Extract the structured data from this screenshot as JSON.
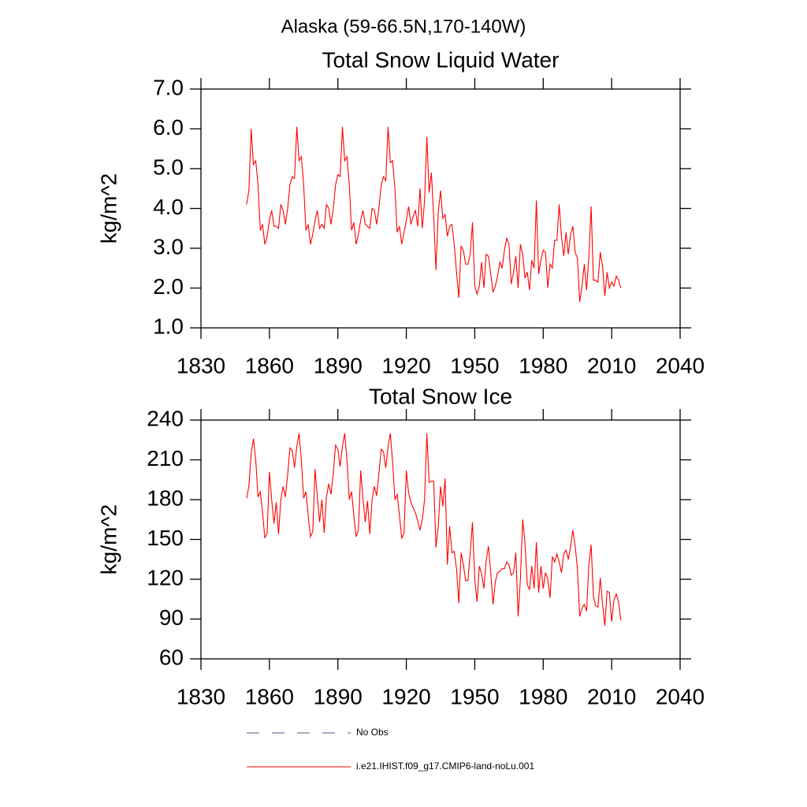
{
  "title": "Alaska (59-66.5N,170-140W)",
  "chart_data": [
    {
      "type": "line",
      "title": "Total Snow Liquid Water",
      "ylabel": "kg/m^2",
      "x": [
        1850,
        1851,
        1852,
        1853,
        1854,
        1855,
        1856,
        1857,
        1858,
        1859,
        1860,
        1861,
        1862,
        1863,
        1864,
        1865,
        1866,
        1867,
        1868,
        1869,
        1870,
        1871,
        1872,
        1873,
        1874,
        1875,
        1876,
        1877,
        1878,
        1879,
        1880,
        1881,
        1882,
        1883,
        1884,
        1885,
        1886,
        1887,
        1888,
        1889,
        1890,
        1891,
        1892,
        1893,
        1894,
        1895,
        1896,
        1897,
        1898,
        1899,
        1900,
        1901,
        1902,
        1903,
        1904,
        1905,
        1906,
        1907,
        1908,
        1909,
        1910,
        1911,
        1912,
        1913,
        1914,
        1915,
        1916,
        1917,
        1918,
        1919,
        1920,
        1921,
        1922,
        1923,
        1924,
        1925,
        1926,
        1927,
        1928,
        1929,
        1930,
        1931,
        1932,
        1933,
        1934,
        1935,
        1936,
        1937,
        1938,
        1939,
        1940,
        1941,
        1942,
        1943,
        1944,
        1945,
        1946,
        1947,
        1948,
        1949,
        1950,
        1951,
        1952,
        1953,
        1954,
        1955,
        1956,
        1957,
        1958,
        1959,
        1960,
        1961,
        1962,
        1963,
        1964,
        1965,
        1966,
        1967,
        1968,
        1969,
        1970,
        1971,
        1972,
        1973,
        1974,
        1975,
        1976,
        1977,
        1978,
        1979,
        1980,
        1981,
        1982,
        1983,
        1984,
        1985,
        1986,
        1987,
        1988,
        1989,
        1990,
        1991,
        1992,
        1993,
        1994,
        1995,
        1996,
        1997,
        1998,
        1999,
        2000,
        2001,
        2002,
        2003,
        2004,
        2005,
        2006,
        2007,
        2008,
        2009,
        2010,
        2011,
        2012,
        2013,
        2014
      ],
      "series": [
        {
          "color": "#ff0000",
          "values": [
            4.1,
            4.45,
            6.0,
            5.1,
            5.2,
            4.6,
            3.45,
            3.6,
            3.1,
            3.3,
            3.7,
            3.95,
            3.55,
            3.55,
            3.5,
            4.1,
            3.95,
            3.6,
            4.0,
            4.6,
            4.8,
            4.75,
            6.05,
            5.2,
            5.3,
            4.6,
            3.45,
            3.6,
            3.1,
            3.35,
            3.7,
            3.95,
            3.5,
            3.6,
            3.5,
            4.1,
            4.0,
            3.6,
            4.0,
            4.6,
            4.85,
            4.8,
            6.05,
            5.2,
            5.3,
            4.6,
            3.45,
            3.65,
            3.1,
            3.35,
            3.7,
            3.95,
            3.6,
            3.55,
            3.5,
            4.0,
            3.95,
            3.6,
            4.0,
            4.6,
            4.8,
            4.7,
            6.05,
            5.15,
            5.2,
            4.5,
            3.4,
            3.55,
            3.1,
            3.4,
            3.7,
            4.05,
            3.6,
            3.8,
            3.95,
            3.55,
            4.5,
            3.5,
            4.2,
            5.8,
            4.4,
            4.9,
            3.8,
            2.45,
            3.9,
            4.45,
            3.75,
            3.85,
            3.3,
            3.55,
            3.6,
            3.1,
            2.4,
            1.75,
            3.05,
            2.95,
            2.6,
            2.6,
            2.85,
            3.65,
            2.05,
            1.85,
            2.05,
            2.65,
            2.0,
            2.85,
            2.8,
            2.35,
            1.9,
            2.05,
            2.3,
            2.65,
            2.5,
            2.95,
            3.25,
            3.1,
            2.1,
            2.4,
            2.8,
            2.0,
            3.1,
            2.85,
            2.25,
            2.4,
            1.95,
            2.7,
            2.5,
            4.2,
            2.35,
            2.7,
            2.95,
            2.9,
            2.0,
            2.6,
            2.5,
            3.2,
            3.2,
            4.1,
            3.3,
            2.8,
            3.4,
            2.85,
            3.35,
            3.55,
            2.9,
            2.75,
            1.65,
            2.05,
            2.6,
            1.95,
            2.8,
            4.05,
            2.2,
            2.2,
            2.15,
            2.9,
            2.55,
            1.8,
            2.4,
            2.0,
            2.15,
            2.05,
            2.3,
            2.2,
            2.0
          ]
        }
      ],
      "xlim": [
        1830,
        2040
      ],
      "xticks": [
        1830,
        1860,
        1890,
        1920,
        1950,
        1980,
        2010,
        2040
      ],
      "ylim": [
        1,
        7
      ],
      "yticks": [
        {
          "value": 1,
          "label": "1.0"
        },
        {
          "value": 2,
          "label": "2.0"
        },
        {
          "value": 3,
          "label": "3.0"
        },
        {
          "value": 4,
          "label": "4.0"
        },
        {
          "value": 5,
          "label": "5.0"
        },
        {
          "value": 6,
          "label": "6.0"
        },
        {
          "value": 7,
          "label": "7.0"
        }
      ]
    },
    {
      "type": "line",
      "title": "Total Snow Ice",
      "ylabel": "kg/m^2",
      "x": [
        1850,
        1851,
        1852,
        1853,
        1854,
        1855,
        1856,
        1857,
        1858,
        1859,
        1860,
        1861,
        1862,
        1863,
        1864,
        1865,
        1866,
        1867,
        1868,
        1869,
        1870,
        1871,
        1872,
        1873,
        1874,
        1875,
        1876,
        1877,
        1878,
        1879,
        1880,
        1881,
        1882,
        1883,
        1884,
        1885,
        1886,
        1887,
        1888,
        1889,
        1890,
        1891,
        1892,
        1893,
        1894,
        1895,
        1896,
        1897,
        1898,
        1899,
        1900,
        1901,
        1902,
        1903,
        1904,
        1905,
        1906,
        1907,
        1908,
        1909,
        1910,
        1911,
        1912,
        1913,
        1914,
        1915,
        1916,
        1917,
        1918,
        1919,
        1920,
        1921,
        1922,
        1923,
        1924,
        1925,
        1926,
        1927,
        1928,
        1929,
        1930,
        1931,
        1932,
        1933,
        1934,
        1935,
        1936,
        1937,
        1938,
        1939,
        1940,
        1941,
        1942,
        1943,
        1944,
        1945,
        1946,
        1947,
        1948,
        1949,
        1950,
        1951,
        1952,
        1953,
        1954,
        1955,
        1956,
        1957,
        1958,
        1959,
        1960,
        1961,
        1962,
        1963,
        1964,
        1965,
        1966,
        1967,
        1968,
        1969,
        1970,
        1971,
        1972,
        1973,
        1974,
        1975,
        1976,
        1977,
        1978,
        1979,
        1980,
        1981,
        1982,
        1983,
        1984,
        1985,
        1986,
        1987,
        1988,
        1989,
        1990,
        1991,
        1992,
        1993,
        1994,
        1995,
        1996,
        1997,
        1998,
        1999,
        2000,
        2001,
        2002,
        2003,
        2004,
        2005,
        2006,
        2007,
        2008,
        2009,
        2010,
        2011,
        2012,
        2013,
        2014
      ],
      "series": [
        {
          "color": "#ff0000",
          "values": [
            181,
            190,
            215,
            226,
            210,
            182,
            186,
            170,
            151,
            155,
            201,
            180,
            162,
            178,
            154,
            180,
            190,
            182,
            199,
            219,
            217,
            204,
            220,
            230,
            210,
            181,
            186,
            168,
            152,
            156,
            203,
            182,
            163,
            180,
            155,
            182,
            192,
            184,
            200,
            221,
            218,
            205,
            220,
            230,
            210,
            180,
            186,
            168,
            152,
            157,
            202,
            181,
            163,
            179,
            154,
            180,
            190,
            183,
            200,
            218,
            216,
            204,
            220,
            230,
            208,
            180,
            184,
            168,
            151,
            155,
            202,
            185,
            178,
            174,
            170,
            164,
            157,
            165,
            180,
            230,
            193,
            194,
            194,
            144,
            160,
            190,
            175,
            196,
            131,
            160,
            140,
            141,
            128,
            102,
            140,
            131,
            119,
            119,
            140,
            163,
            120,
            103,
            130,
            124,
            113,
            134,
            145,
            125,
            101,
            118,
            125,
            126,
            128,
            128,
            133,
            131,
            123,
            125,
            140,
            92,
            120,
            165,
            148,
            116,
            112,
            130,
            113,
            148,
            110,
            130,
            113,
            125,
            120,
            106,
            137,
            133,
            139,
            133,
            125,
            139,
            142,
            135,
            145,
            157,
            145,
            128,
            92,
            98,
            101,
            96,
            131,
            146,
            107,
            100,
            99,
            121,
            101,
            85,
            111,
            110,
            88,
            104,
            109,
            103,
            89
          ]
        }
      ],
      "xlim": [
        1830,
        2040
      ],
      "xticks": [
        1830,
        1860,
        1890,
        1920,
        1950,
        1980,
        2010,
        2040
      ],
      "ylim": [
        60,
        240
      ],
      "yticks": [
        60,
        90,
        120,
        150,
        180,
        210,
        240
      ]
    }
  ],
  "legend": [
    {
      "name": "No Obs",
      "color": "#4a5a8a",
      "dashed": true
    },
    {
      "name": "i.e21.IHIST.f09_g17.CMIP6-land-noLu.001",
      "color": "#ff0000",
      "dashed": false
    }
  ]
}
